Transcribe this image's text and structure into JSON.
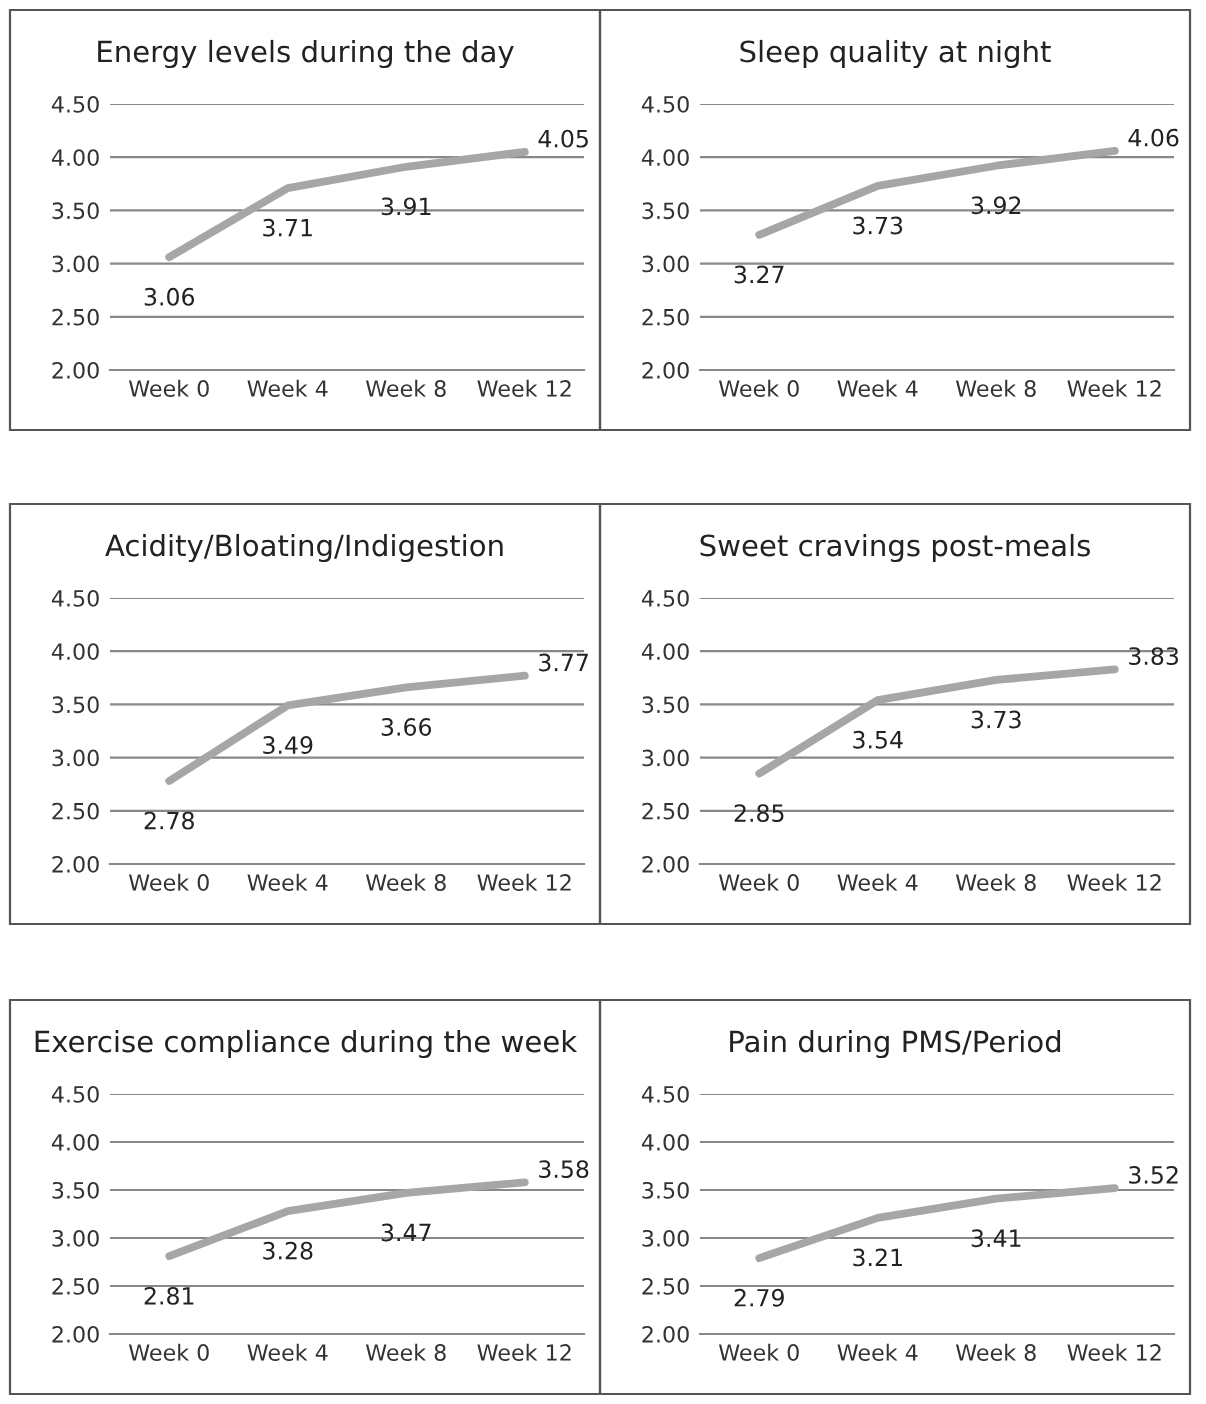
{
  "chart_data": [
    {
      "type": "line",
      "title": "Energy levels during the day",
      "categories": [
        "Week 0",
        "Week 4",
        "Week 8",
        "Week 12"
      ],
      "series": [
        {
          "color": "#a6a6a6",
          "values": [
            3.06,
            3.71,
            3.91,
            4.05
          ]
        }
      ],
      "ylim": [
        2.0,
        4.5
      ],
      "yticks": [
        {
          "value": 2.0,
          "label": "2.00"
        },
        {
          "value": 2.5,
          "label": "2.50"
        },
        {
          "value": 3.0,
          "label": "3.00"
        },
        {
          "value": 3.5,
          "label": "3.50"
        },
        {
          "value": 4.0,
          "label": "4.00"
        },
        {
          "value": 4.5,
          "label": "4.50"
        }
      ],
      "grid": "y",
      "data_labels": true,
      "marker": "none",
      "line_style": "solid"
    },
    {
      "type": "line",
      "title": "Sleep quality at night",
      "categories": [
        "Week 0",
        "Week 4",
        "Week 8",
        "Week 12"
      ],
      "series": [
        {
          "color": "#a6a6a6",
          "values": [
            3.27,
            3.73,
            3.92,
            4.06
          ]
        }
      ],
      "ylim": [
        2.0,
        4.5
      ],
      "yticks": [
        {
          "value": 2.0,
          "label": "2.00"
        },
        {
          "value": 2.5,
          "label": "2.50"
        },
        {
          "value": 3.0,
          "label": "3.00"
        },
        {
          "value": 3.5,
          "label": "3.50"
        },
        {
          "value": 4.0,
          "label": "4.00"
        },
        {
          "value": 4.5,
          "label": "4.50"
        }
      ],
      "grid": "y",
      "data_labels": true,
      "marker": "none",
      "line_style": "solid"
    },
    {
      "type": "line",
      "title": "Acidity/Bloating/Indigestion",
      "categories": [
        "Week 0",
        "Week 4",
        "Week 8",
        "Week 12"
      ],
      "series": [
        {
          "color": "#a6a6a6",
          "values": [
            2.78,
            3.49,
            3.66,
            3.77
          ]
        }
      ],
      "ylim": [
        2.0,
        4.5
      ],
      "yticks": [
        {
          "value": 2.0,
          "label": "2.00"
        },
        {
          "value": 2.5,
          "label": "2.50"
        },
        {
          "value": 3.0,
          "label": "3.00"
        },
        {
          "value": 3.5,
          "label": "3.50"
        },
        {
          "value": 4.0,
          "label": "4.00"
        },
        {
          "value": 4.5,
          "label": "4.50"
        }
      ],
      "grid": "y",
      "data_labels": true,
      "marker": "none",
      "line_style": "solid"
    },
    {
      "type": "line",
      "title": "Sweet cravings post-meals",
      "categories": [
        "Week 0",
        "Week 4",
        "Week 8",
        "Week 12"
      ],
      "series": [
        {
          "color": "#a6a6a6",
          "values": [
            2.85,
            3.54,
            3.73,
            3.83
          ]
        }
      ],
      "ylim": [
        2.0,
        4.5
      ],
      "yticks": [
        {
          "value": 2.0,
          "label": "2.00"
        },
        {
          "value": 2.5,
          "label": "2.50"
        },
        {
          "value": 3.0,
          "label": "3.00"
        },
        {
          "value": 3.5,
          "label": "3.50"
        },
        {
          "value": 4.0,
          "label": "4.00"
        },
        {
          "value": 4.5,
          "label": "4.50"
        }
      ],
      "grid": "y",
      "data_labels": true,
      "marker": "none",
      "line_style": "solid"
    },
    {
      "type": "line",
      "title": "Exercise compliance during the week",
      "categories": [
        "Week 0",
        "Week 4",
        "Week 8",
        "Week 12"
      ],
      "series": [
        {
          "color": "#a6a6a6",
          "values": [
            2.81,
            3.28,
            3.47,
            3.58
          ]
        }
      ],
      "ylim": [
        2.0,
        4.5
      ],
      "yticks": [
        {
          "value": 2.0,
          "label": "2.00"
        },
        {
          "value": 2.5,
          "label": "2.50"
        },
        {
          "value": 3.0,
          "label": "3.00"
        },
        {
          "value": 3.5,
          "label": "3.50"
        },
        {
          "value": 4.0,
          "label": "4.00"
        },
        {
          "value": 4.5,
          "label": "4.50"
        }
      ],
      "grid": "y",
      "data_labels": true,
      "marker": "none",
      "line_style": "solid"
    },
    {
      "type": "line",
      "title": "Pain during PMS/Period",
      "categories": [
        "Week 0",
        "Week 4",
        "Week 8",
        "Week 12"
      ],
      "series": [
        {
          "color": "#a6a6a6",
          "values": [
            2.79,
            3.21,
            3.41,
            3.52
          ]
        }
      ],
      "ylim": [
        2.0,
        4.5
      ],
      "yticks": [
        {
          "value": 2.0,
          "label": "2.00"
        },
        {
          "value": 2.5,
          "label": "2.50"
        },
        {
          "value": 3.0,
          "label": "3.00"
        },
        {
          "value": 3.5,
          "label": "3.50"
        },
        {
          "value": 4.0,
          "label": "4.00"
        },
        {
          "value": 4.5,
          "label": "4.50"
        }
      ],
      "grid": "y",
      "data_labels": true,
      "marker": "none",
      "line_style": "solid"
    }
  ]
}
